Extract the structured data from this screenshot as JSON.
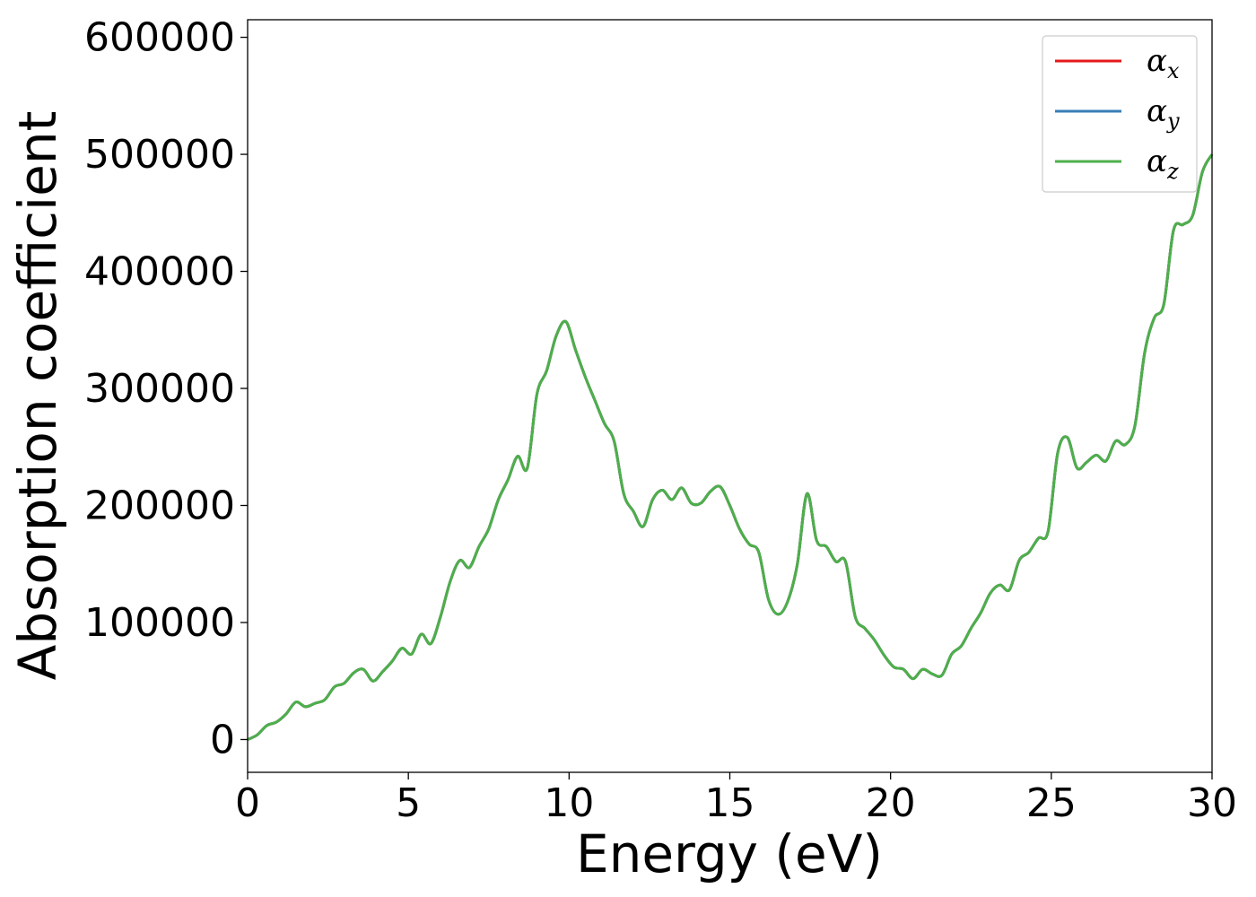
{
  "chart_data": {
    "type": "line",
    "title": "",
    "xlabel": "Energy (eV)",
    "ylabel": "Absorption coefficient",
    "xlim": [
      0,
      30
    ],
    "ylim": [
      -28000,
      615000
    ],
    "xticks": [
      "0",
      "5",
      "10",
      "15",
      "20",
      "25",
      "30"
    ],
    "yticks": [
      "0",
      "100000",
      "200000",
      "300000",
      "400000",
      "500000",
      "600000"
    ],
    "grid": false,
    "legend_position": "top-right",
    "x": [
      0,
      0.3,
      0.6,
      0.9,
      1.2,
      1.5,
      1.8,
      2.1,
      2.4,
      2.7,
      3.0,
      3.3,
      3.6,
      3.9,
      4.2,
      4.5,
      4.8,
      5.1,
      5.4,
      5.7,
      6.0,
      6.3,
      6.6,
      6.9,
      7.2,
      7.5,
      7.8,
      8.1,
      8.4,
      8.7,
      9.0,
      9.3,
      9.6,
      9.9,
      10.2,
      10.5,
      10.8,
      11.1,
      11.4,
      11.7,
      12.0,
      12.3,
      12.6,
      12.9,
      13.2,
      13.5,
      13.8,
      14.1,
      14.4,
      14.7,
      15.0,
      15.3,
      15.6,
      15.9,
      16.2,
      16.5,
      16.8,
      17.1,
      17.4,
      17.7,
      18.0,
      18.3,
      18.6,
      18.9,
      19.2,
      19.5,
      19.8,
      20.1,
      20.4,
      20.7,
      21.0,
      21.3,
      21.6,
      21.9,
      22.2,
      22.5,
      22.8,
      23.1,
      23.4,
      23.7,
      24.0,
      24.3,
      24.6,
      24.9,
      25.2,
      25.5,
      25.8,
      26.1,
      26.4,
      26.7,
      27.0,
      27.3,
      27.6,
      27.9,
      28.2,
      28.5,
      28.8,
      29.1,
      29.4,
      29.7,
      30.0
    ],
    "series": [
      {
        "name": "x",
        "color": "#e41a1c",
        "values": [
          0,
          4000,
          12000,
          15000,
          22000,
          32000,
          28000,
          31000,
          34000,
          45000,
          48000,
          57000,
          60000,
          50000,
          58000,
          67000,
          78000,
          73000,
          90000,
          82000,
          105000,
          135000,
          153000,
          147000,
          165000,
          180000,
          205000,
          222000,
          242000,
          232000,
          295000,
          315000,
          345000,
          357000,
          333000,
          310000,
          290000,
          270000,
          255000,
          210000,
          195000,
          182000,
          205000,
          213000,
          205000,
          215000,
          202000,
          202000,
          212000,
          216000,
          200000,
          180000,
          167000,
          160000,
          120000,
          107000,
          118000,
          150000,
          210000,
          170000,
          165000,
          152000,
          152000,
          105000,
          95000,
          85000,
          72000,
          62000,
          60000,
          52000,
          60000,
          56000,
          55000,
          73000,
          80000,
          95000,
          108000,
          125000,
          132000,
          128000,
          153000,
          160000,
          172000,
          178000,
          245000,
          258000,
          232000,
          237000,
          243000,
          238000,
          255000,
          252000,
          268000,
          330000,
          360000,
          372000,
          435000,
          440000,
          448000,
          485000,
          500000
        ]
      },
      {
        "name": "y",
        "color": "#377eb8",
        "values": [
          0,
          4000,
          12000,
          15000,
          22000,
          32000,
          28000,
          31000,
          34000,
          45000,
          48000,
          57000,
          60000,
          50000,
          58000,
          67000,
          78000,
          73000,
          90000,
          82000,
          105000,
          135000,
          153000,
          147000,
          165000,
          180000,
          205000,
          222000,
          242000,
          232000,
          295000,
          315000,
          345000,
          357000,
          333000,
          310000,
          290000,
          270000,
          255000,
          210000,
          195000,
          182000,
          205000,
          213000,
          205000,
          215000,
          202000,
          202000,
          212000,
          216000,
          200000,
          180000,
          167000,
          160000,
          120000,
          107000,
          118000,
          150000,
          210000,
          170000,
          165000,
          152000,
          152000,
          105000,
          95000,
          85000,
          72000,
          62000,
          60000,
          52000,
          60000,
          56000,
          55000,
          73000,
          80000,
          95000,
          108000,
          125000,
          132000,
          128000,
          153000,
          160000,
          172000,
          178000,
          245000,
          258000,
          232000,
          237000,
          243000,
          238000,
          255000,
          252000,
          268000,
          330000,
          360000,
          372000,
          435000,
          440000,
          448000,
          485000,
          500000
        ]
      },
      {
        "name": "z",
        "color": "#4daf4a",
        "values": [
          0,
          4000,
          12000,
          15000,
          22000,
          32000,
          28000,
          31000,
          34000,
          45000,
          48000,
          57000,
          60000,
          50000,
          58000,
          67000,
          78000,
          73000,
          90000,
          82000,
          105000,
          135000,
          153000,
          147000,
          165000,
          180000,
          205000,
          222000,
          242000,
          232000,
          295000,
          315000,
          345000,
          357000,
          333000,
          310000,
          290000,
          270000,
          255000,
          210000,
          195000,
          182000,
          205000,
          213000,
          205000,
          215000,
          202000,
          202000,
          212000,
          216000,
          200000,
          180000,
          167000,
          160000,
          120000,
          107000,
          118000,
          150000,
          210000,
          170000,
          165000,
          152000,
          152000,
          105000,
          95000,
          85000,
          72000,
          62000,
          60000,
          52000,
          60000,
          56000,
          55000,
          73000,
          80000,
          95000,
          108000,
          125000,
          132000,
          128000,
          153000,
          160000,
          172000,
          178000,
          245000,
          258000,
          232000,
          237000,
          243000,
          238000,
          255000,
          252000,
          268000,
          330000,
          360000,
          372000,
          435000,
          440000,
          448000,
          485000,
          500000
        ]
      }
    ],
    "legend_symbol": "α"
  }
}
